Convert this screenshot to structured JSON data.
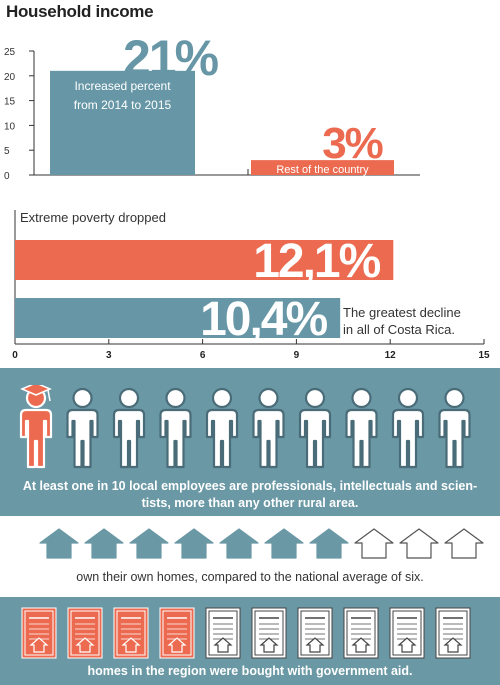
{
  "title": "Household income",
  "colors": {
    "blue": "#6797a6",
    "orange": "#ec6a4f",
    "panel": "#6a98a5"
  },
  "chart_data": [
    {
      "type": "bar",
      "title": "Household income",
      "categories": [
        "Increased percent from 2014 to 2015",
        "Rest of the country"
      ],
      "values": [
        21,
        3
      ],
      "value_labels": [
        "21%",
        "3%"
      ],
      "bar_label_lines": [
        [
          "Increased percent",
          "from 2014 to 2015"
        ],
        [
          "Rest of the country"
        ]
      ],
      "ylim": [
        0,
        25
      ],
      "yticks": [
        0,
        5,
        10,
        15,
        20,
        25
      ],
      "ytick_labels": [
        "0",
        "5",
        "10",
        "15",
        "20",
        "25"
      ],
      "grid": false
    },
    {
      "type": "bar",
      "orientation": "horizontal",
      "title": "Extreme poverty dropped",
      "values": [
        12.1,
        10.4
      ],
      "value_labels": [
        "12,1%",
        "10,4%"
      ],
      "annotation_lines": [
        "The greatest decline",
        "in all of Costa Rica."
      ],
      "xlim": [
        0,
        15
      ],
      "xticks": [
        0,
        3,
        6,
        9,
        12,
        15
      ],
      "xtick_labels": [
        "0",
        "3",
        "6",
        "9",
        "12",
        "15"
      ],
      "grid": false
    }
  ],
  "professionals": {
    "count": 1,
    "total": 10,
    "text_lines": [
      "At least one in 10 local employees are professionals, intellectuals and scien-",
      "tists, more than any other rural area."
    ],
    "icon": "person-icon",
    "highlight_icon": "graduate-icon"
  },
  "homes": {
    "filled": 7,
    "total": 10,
    "text": "own their own homes, compared to the national average of six.",
    "icon": "house-icon"
  },
  "aid": {
    "filled": 4,
    "total": 10,
    "text": "homes in the region were bought with government aid.",
    "icon": "deed-document-icon"
  }
}
